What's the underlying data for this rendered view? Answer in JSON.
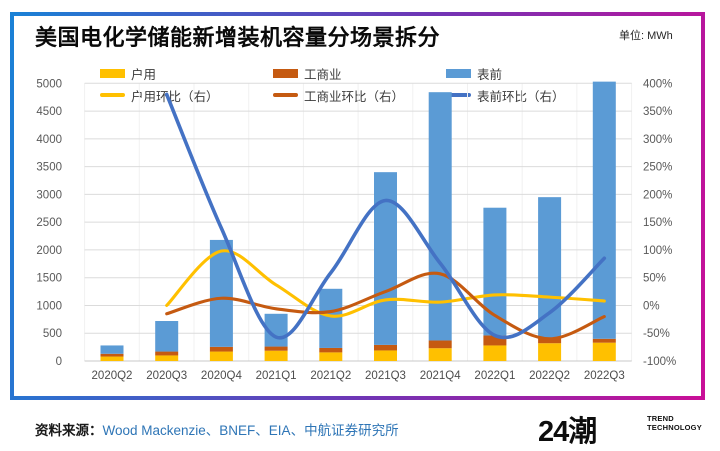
{
  "header": {
    "title": "美国电化学储能新增装机容量分场景拆分",
    "unit_label": "单位: MWh"
  },
  "chart_data": {
    "type": "combo-stacked-bar-line",
    "categories": [
      "2020Q2",
      "2020Q3",
      "2020Q4",
      "2021Q1",
      "2021Q2",
      "2021Q3",
      "2021Q4",
      "2022Q1",
      "2022Q2",
      "2022Q3"
    ],
    "bar_series": [
      {
        "name": "户用",
        "axis": "left",
        "color": "#FFC000",
        "values": [
          80,
          100,
          170,
          185,
          155,
          190,
          230,
          280,
          320,
          330
        ]
      },
      {
        "name": "工商业",
        "axis": "left",
        "color": "#C55A11",
        "values": [
          50,
          70,
          85,
          75,
          80,
          100,
          140,
          180,
          90,
          70
        ]
      },
      {
        "name": "表前",
        "axis": "left",
        "color": "#5B9BD5",
        "values": [
          150,
          550,
          1925,
          590,
          1065,
          3110,
          4470,
          2300,
          2540,
          4630
        ]
      }
    ],
    "line_series": [
      {
        "name": "户用环比（右）",
        "axis": "right",
        "color": "#FFC000",
        "values": [
          null,
          0,
          98,
          37,
          -19,
          10,
          6,
          19,
          15,
          8
        ]
      },
      {
        "name": "工商业环比（右）",
        "axis": "right",
        "color": "#C55A11",
        "values": [
          null,
          -15,
          13,
          -6,
          -11,
          25,
          57,
          -18,
          -60,
          -20
        ]
      },
      {
        "name": "表前环比（右）",
        "axis": "right",
        "color": "#4472C4",
        "values": [
          null,
          380,
          139,
          -57,
          59,
          189,
          76,
          -54,
          -13,
          85
        ]
      }
    ],
    "left_axis": {
      "min": 0,
      "max": 5000,
      "step": 500,
      "tick_labels": [
        "0",
        "500",
        "1000",
        "1500",
        "2000",
        "2500",
        "3000",
        "3500",
        "4000",
        "4500",
        "5000"
      ]
    },
    "right_axis": {
      "min": -100,
      "max": 400,
      "step": 50,
      "tick_labels": [
        "-100%",
        "-50%",
        "0%",
        "50%",
        "100%",
        "150%",
        "200%",
        "250%",
        "300%",
        "350%",
        "400%"
      ]
    },
    "grid": true,
    "legend_position": "top",
    "grid_color": "#DBDBDB",
    "tick_color": "#595959"
  },
  "footer": {
    "source_label": "资料来源：",
    "source_text": "Wood Mackenzie、BNEF、EIA、中航证券研究所",
    "source_color": "#2E75B6",
    "logo_text": "24潮",
    "logo_sub_line1": "TREND",
    "logo_sub_line2": "TECHNOLOGY"
  }
}
